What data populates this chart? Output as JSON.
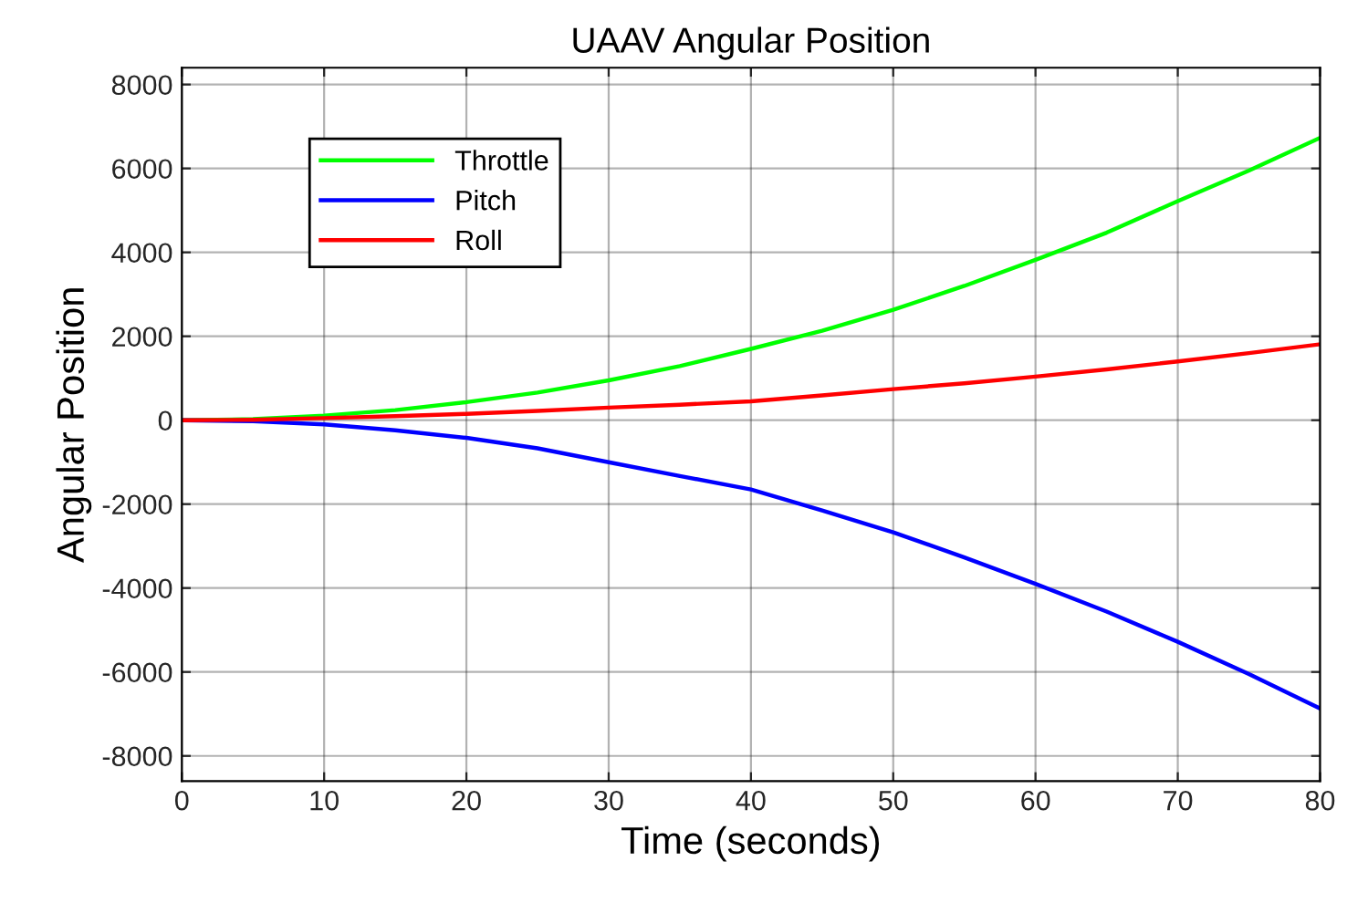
{
  "chart_data": {
    "type": "line",
    "title": "UAAV Angular Position",
    "xlabel": "Time (seconds)",
    "ylabel": "Angular Position",
    "x": [
      0,
      5,
      10,
      15,
      20,
      25,
      30,
      35,
      40,
      45,
      50,
      55,
      60,
      65,
      70,
      75,
      80
    ],
    "series": [
      {
        "name": "Throttle",
        "color": "#00ff00",
        "values": [
          0,
          25,
          110,
          240,
          430,
          660,
          950,
          1290,
          1700,
          2130,
          2630,
          3200,
          3820,
          4470,
          5220,
          5950,
          6730
        ]
      },
      {
        "name": "Pitch",
        "color": "#0000ff",
        "values": [
          0,
          -25,
          -100,
          -240,
          -420,
          -670,
          -1000,
          -1330,
          -1650,
          -2150,
          -2670,
          -3270,
          -3900,
          -4560,
          -5280,
          -6050,
          -6870
        ]
      },
      {
        "name": "Roll",
        "color": "#ff0000",
        "values": [
          0,
          10,
          50,
          95,
          150,
          220,
          300,
          370,
          450,
          590,
          740,
          880,
          1040,
          1210,
          1400,
          1600,
          1810
        ]
      }
    ],
    "xlim": [
      0,
      80
    ],
    "xticks": [
      0,
      10,
      20,
      30,
      40,
      50,
      60,
      70,
      80
    ],
    "ylim": [
      -8600,
      8400
    ],
    "yticks": [
      -8000,
      -6000,
      -4000,
      -2000,
      0,
      2000,
      4000,
      6000,
      8000
    ],
    "grid": true,
    "legend": "top left",
    "line_style": "solid",
    "marker": "none"
  }
}
